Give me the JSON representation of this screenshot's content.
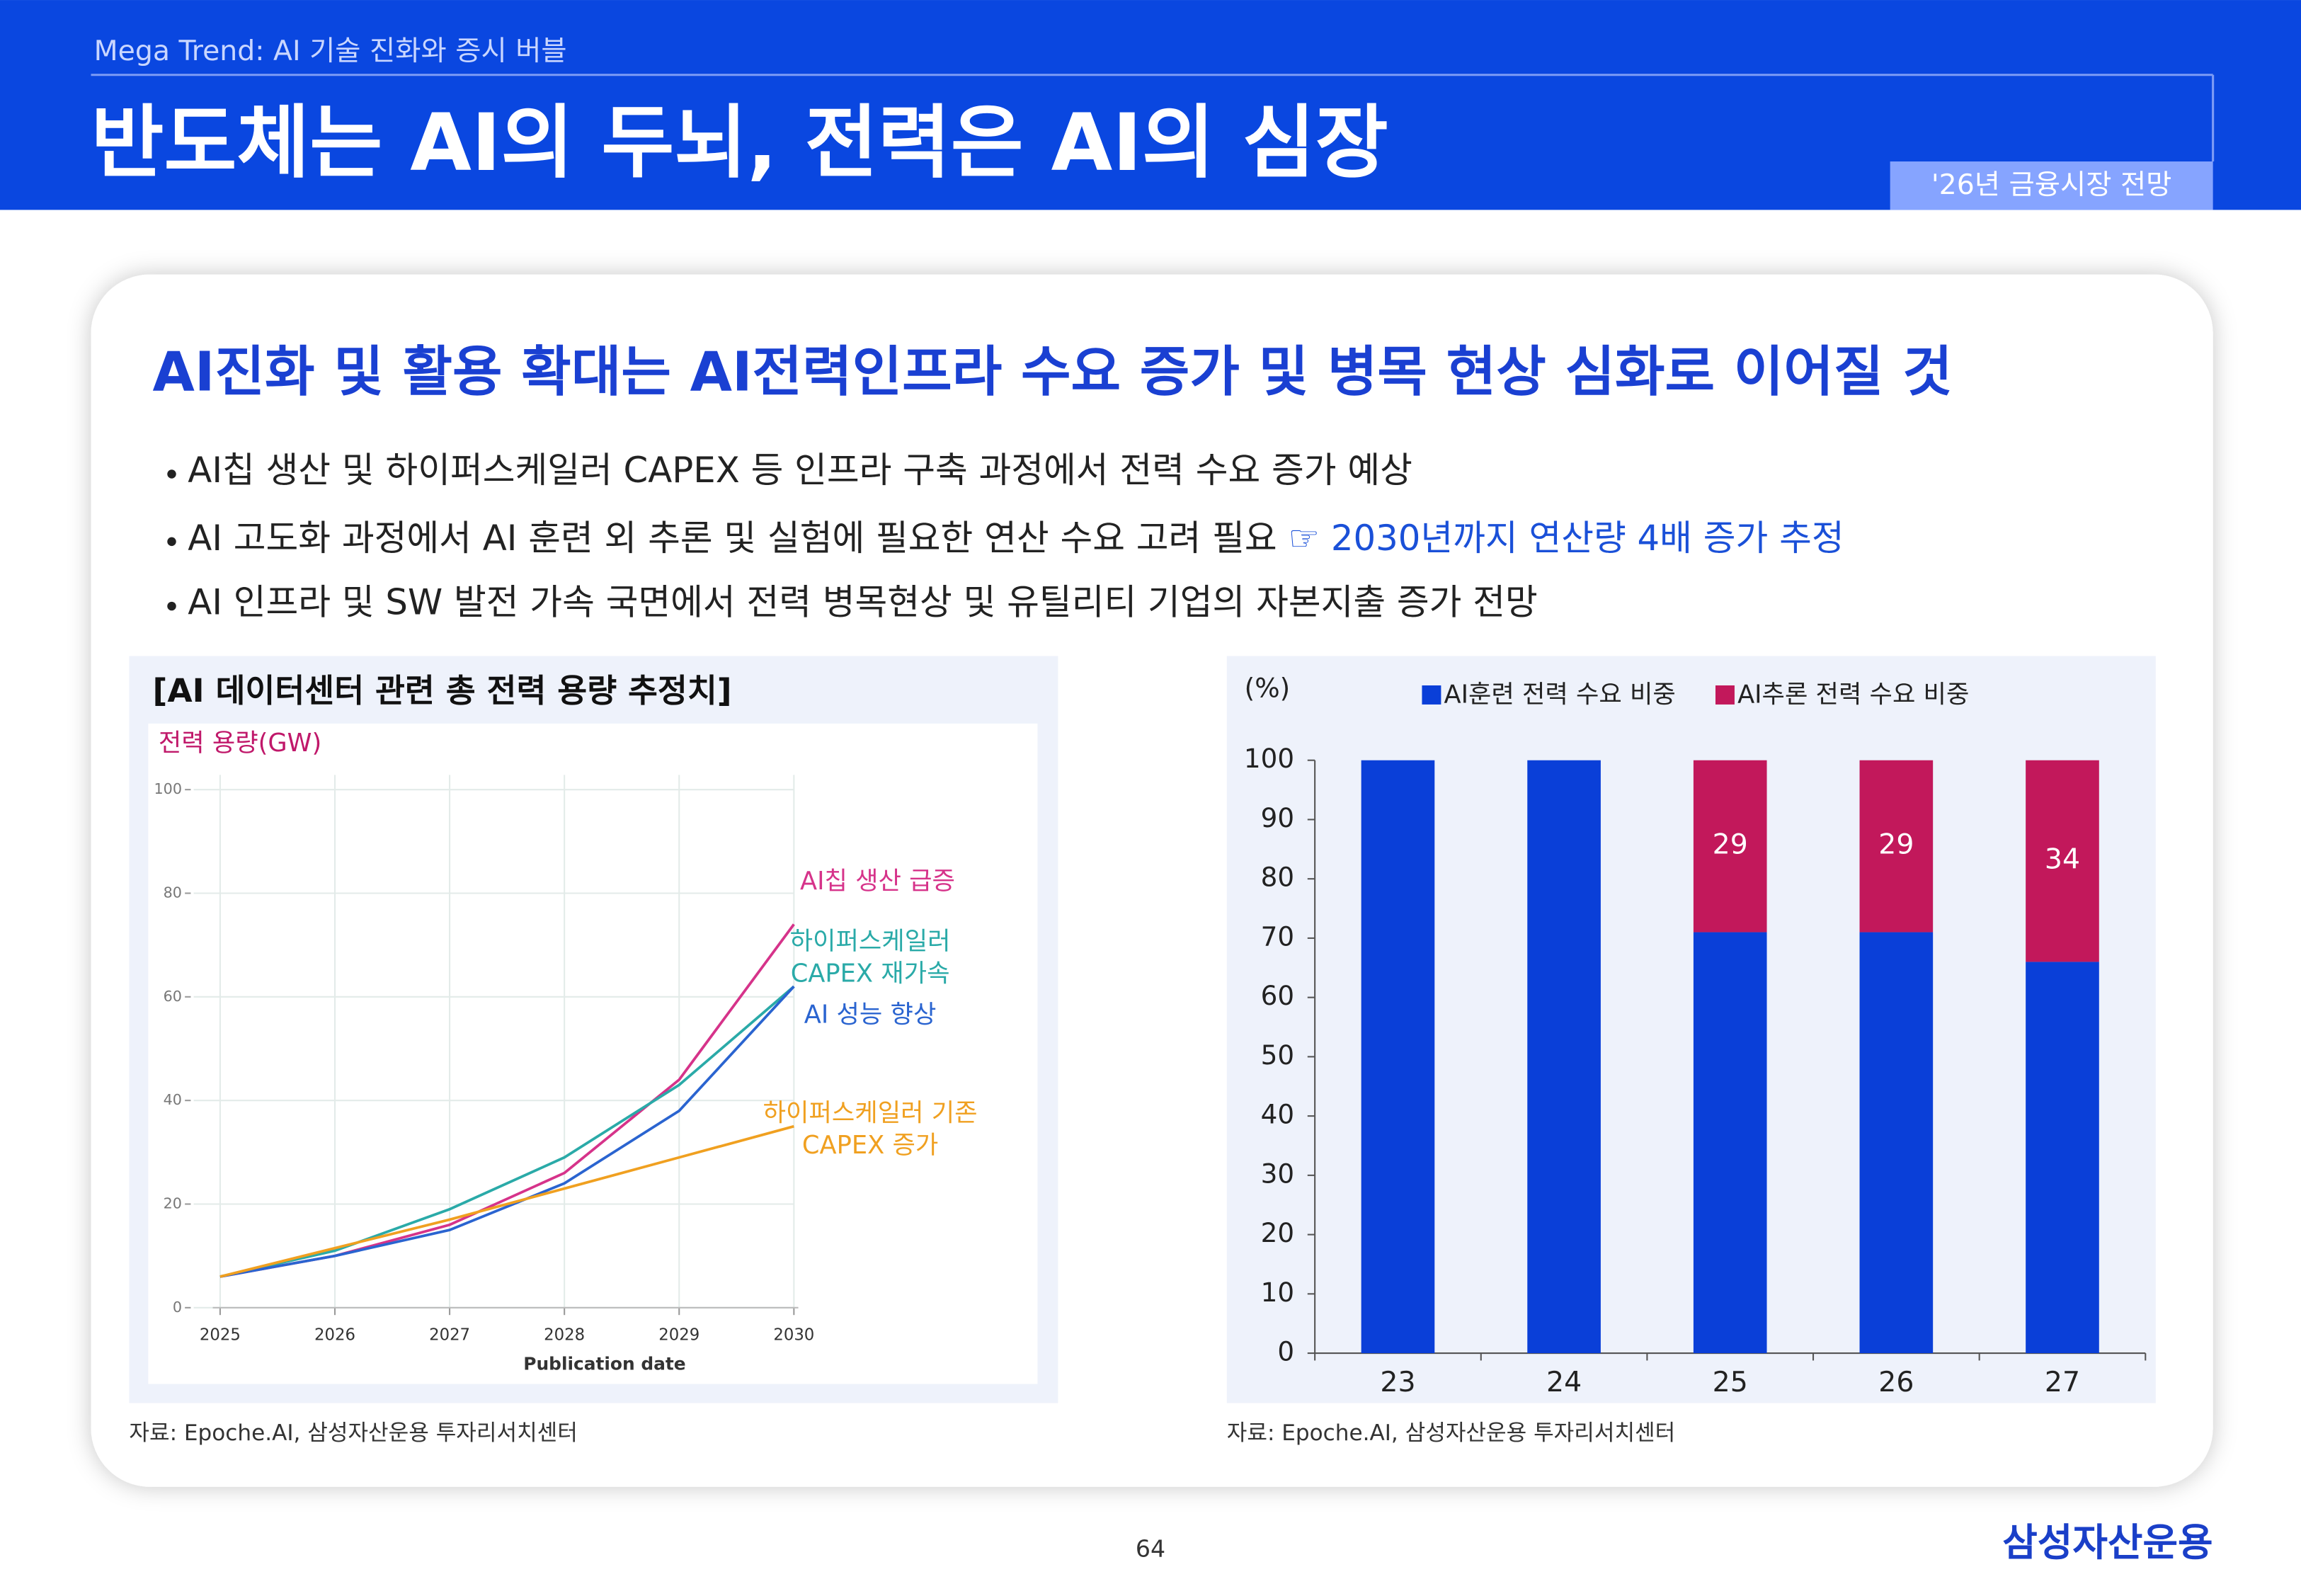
{
  "header": {
    "section": "Mega Trend: AI 기술 진화와 증시 버블",
    "title": "반도체는 AI의 두뇌, 전력은 AI의 심장",
    "badge": "'26년 금융시장 전망"
  },
  "card": {
    "headline": "AI진화 및 활용 확대는 AI전력인프라 수요 증가 및 병목 현상 심화로 이어질 것",
    "bullets": [
      {
        "text": "AI칩 생산 및 하이퍼스케일러 CAPEX 등 인프라 구축 과정에서 전력 수요 증가 예상"
      },
      {
        "text": "AI 고도화 과정에서 AI 훈련 외 추론 및 실험에 필요한 연산 수요 고려 필요 ",
        "highlight": "☞ 2030년까지 연산량 4배 증가 추정"
      },
      {
        "text": "AI 인프라 및 SW 발전 가속 국면에서 전력 병목현상 및 유틸리티 기업의 자본지출 증가 전망"
      }
    ]
  },
  "chart_data": [
    {
      "type": "line",
      "title": "[AI 데이터센터 관련 총 전력 용량 추정치]",
      "y_label": "전력 용량(GW)",
      "x_label": "Publication date",
      "x": [
        2025,
        2026,
        2027,
        2028,
        2029,
        2030
      ],
      "xlim": [
        2025,
        2030
      ],
      "xticks": [
        2025,
        2026,
        2027,
        2028,
        2029,
        2030
      ],
      "ylim": [
        0,
        100
      ],
      "yticks": [
        0,
        20,
        40,
        60,
        80,
        100
      ],
      "grid": true,
      "series": [
        {
          "name": "AI칩 생산 급증",
          "color": "#d6338a",
          "values": [
            6,
            10,
            16,
            26,
            44,
            74
          ]
        },
        {
          "name": "하이퍼스케일러 CAPEX 재가속",
          "color": "#2aaaa8",
          "values": [
            6,
            11,
            19,
            29,
            43,
            62
          ]
        },
        {
          "name": "AI 성능 향상",
          "color": "#2a64d0",
          "values": [
            6,
            10,
            15,
            24,
            38,
            62
          ]
        },
        {
          "name": "하이퍼스케일러 기존 CAPEX 증가",
          "color": "#f0a020",
          "values": [
            6,
            11.5,
            17,
            23,
            29,
            35
          ]
        }
      ],
      "source": "자료: Epoche.AI, 삼성자산운용 투자리서치센터"
    },
    {
      "type": "stacked_bar",
      "y_label": "(%)",
      "categories": [
        "23",
        "24",
        "25",
        "26",
        "27"
      ],
      "ylim": [
        0,
        100
      ],
      "yticks": [
        0,
        10,
        20,
        30,
        40,
        50,
        60,
        70,
        80,
        90,
        100
      ],
      "series": [
        {
          "name": "AI훈련 전력 수요 비중",
          "color": "#0a3fd8",
          "values": [
            100,
            100,
            71,
            71,
            66
          ]
        },
        {
          "name": "AI추론 전력 수요 비중",
          "color": "#c2185b",
          "values": [
            null,
            null,
            29,
            29,
            34
          ],
          "data_labels": true
        }
      ],
      "source": "자료: Epoche.AI, 삼성자산운용 투자리서치센터"
    }
  ],
  "footer": {
    "page": "64",
    "logo": "삼성자산운용"
  }
}
